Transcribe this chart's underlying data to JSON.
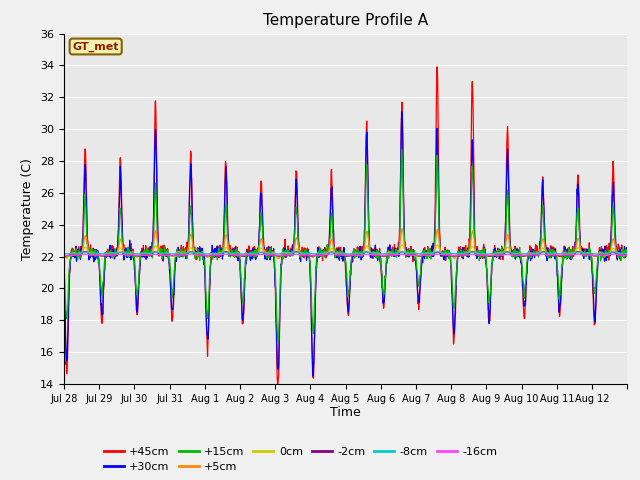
{
  "title": "Temperature Profile A",
  "xlabel": "Time",
  "ylabel": "Temperature (C)",
  "ylim": [
    14,
    36
  ],
  "yticks": [
    14,
    16,
    18,
    20,
    22,
    24,
    26,
    28,
    30,
    32,
    34,
    36
  ],
  "n_points": 1440,
  "fig_bg": "#f0f0f0",
  "plot_bg": "#e8e8e8",
  "series": {
    "+45cm": {
      "color": "#ff0000",
      "lw": 0.9
    },
    "+30cm": {
      "color": "#0000ff",
      "lw": 0.9
    },
    "+15cm": {
      "color": "#00bb00",
      "lw": 0.9
    },
    "+5cm": {
      "color": "#ff8800",
      "lw": 0.9
    },
    "0cm": {
      "color": "#cccc00",
      "lw": 0.9
    },
    "-2cm": {
      "color": "#880088",
      "lw": 0.9
    },
    "-8cm": {
      "color": "#00cccc",
      "lw": 0.9
    },
    "-16cm": {
      "color": "#ff44ff",
      "lw": 0.9
    }
  },
  "xtick_labels": [
    "Jul 28",
    "Jul 29",
    "Jul 30",
    "Jul 31",
    "Aug 1",
    "Aug 2",
    "Aug 3",
    "Aug 4",
    "Aug 5",
    "Aug 6",
    "Aug 7",
    "Aug 8",
    "Aug 9",
    "Aug 10",
    "Aug 11",
    "Aug 12"
  ],
  "annotation_text": "GT_met",
  "legend_order": [
    "+45cm",
    "+30cm",
    "+15cm",
    "+5cm",
    "0cm",
    "-2cm",
    "-8cm",
    "-16cm"
  ]
}
